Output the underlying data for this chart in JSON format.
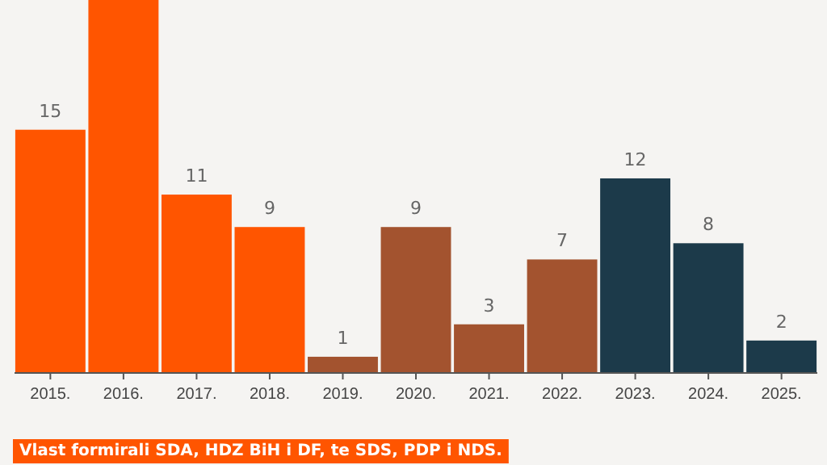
{
  "chart_data": {
    "type": "bar",
    "categories": [
      "2015.",
      "2016.",
      "2017.",
      "2018.",
      "2019.",
      "2020.",
      "2021.",
      "2022.",
      "2023.",
      "2024.",
      "2025."
    ],
    "values": [
      15,
      23,
      11,
      9,
      1,
      9,
      3,
      7,
      12,
      8,
      2
    ],
    "colors": [
      "#ff5500",
      "#ff5500",
      "#ff5500",
      "#ff5500",
      "#a3532f",
      "#a3532f",
      "#a3532f",
      "#a3532f",
      "#1c3a4a",
      "#1c3a4a",
      "#1c3a4a"
    ],
    "value_labels": [
      "15",
      null,
      "11",
      "9",
      "1",
      "9",
      "3",
      "7",
      "12",
      "8",
      "2"
    ],
    "ylim": [
      0,
      23
    ],
    "tick_labels": "x",
    "annotations": [
      "Vlast formirali SDA, HDZ BiH i DF, te SDS, PDP i NDS."
    ]
  }
}
